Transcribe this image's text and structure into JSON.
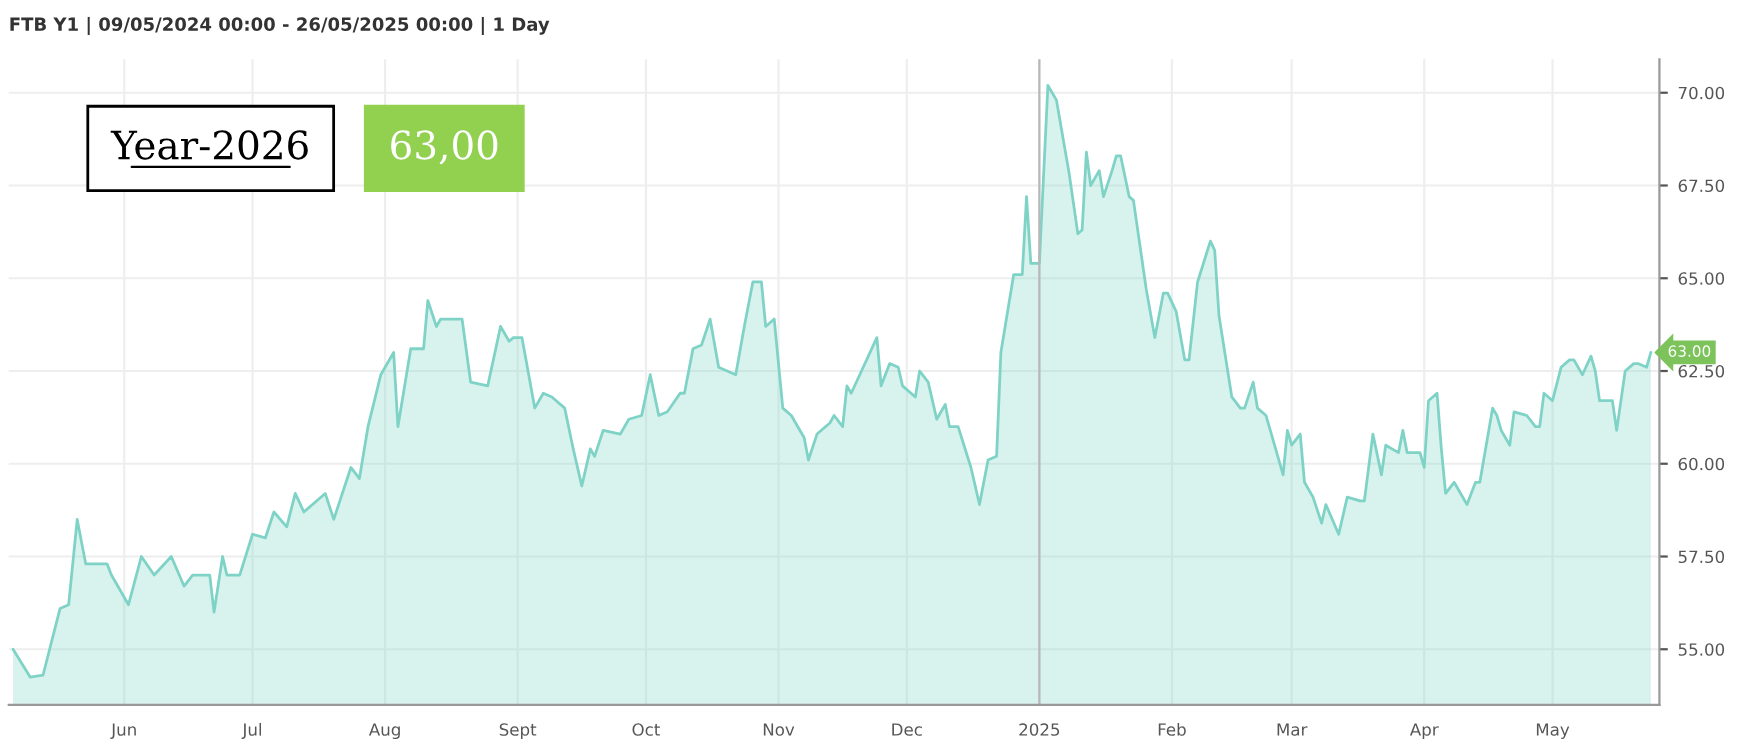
{
  "chart_data": {
    "type": "area",
    "title": "FTB Y1 | 09/05/2024 00:00 - 26/05/2025 00:00 | 1 Day",
    "x": [
      "2024-05-06",
      "2024-05-10",
      "2024-05-13",
      "2024-05-17",
      "2024-05-19",
      "2024-05-21",
      "2024-05-23",
      "2024-05-28",
      "2024-05-29",
      "2024-06-02",
      "2024-06-05",
      "2024-06-08",
      "2024-06-12",
      "2024-06-15",
      "2024-06-17",
      "2024-06-21",
      "2024-06-22",
      "2024-06-24",
      "2024-06-25",
      "2024-06-28",
      "2024-07-01",
      "2024-07-04",
      "2024-07-06",
      "2024-07-09",
      "2024-07-11",
      "2024-07-13",
      "2024-07-18",
      "2024-07-20",
      "2024-07-24",
      "2024-07-26",
      "2024-07-28",
      "2024-07-31",
      "2024-08-03",
      "2024-08-04",
      "2024-08-07",
      "2024-08-10",
      "2024-08-11",
      "2024-08-13",
      "2024-08-14",
      "2024-08-19",
      "2024-08-21",
      "2024-08-25",
      "2024-08-28",
      "2024-08-30",
      "2024-08-31",
      "2024-09-02",
      "2024-09-05",
      "2024-09-07",
      "2024-09-09",
      "2024-09-12",
      "2024-09-14",
      "2024-09-16",
      "2024-09-18",
      "2024-09-19",
      "2024-09-21",
      "2024-09-25",
      "2024-09-27",
      "2024-09-30",
      "2024-10-02",
      "2024-10-04",
      "2024-10-06",
      "2024-10-09",
      "2024-10-10",
      "2024-10-12",
      "2024-10-14",
      "2024-10-16",
      "2024-10-18",
      "2024-10-22",
      "2024-10-24",
      "2024-10-26",
      "2024-10-28",
      "2024-10-29",
      "2024-10-31",
      "2024-11-02",
      "2024-11-04",
      "2024-11-07",
      "2024-11-08",
      "2024-11-10",
      "2024-11-13",
      "2024-11-14",
      "2024-11-16",
      "2024-11-17",
      "2024-11-18",
      "2024-11-20",
      "2024-11-24",
      "2024-11-25",
      "2024-11-27",
      "2024-11-29",
      "2024-11-30",
      "2024-12-03",
      "2024-12-04",
      "2024-12-06",
      "2024-12-08",
      "2024-12-10",
      "2024-12-11",
      "2024-12-13",
      "2024-12-16",
      "2024-12-18",
      "2024-12-20",
      "2024-12-22",
      "2024-12-23",
      "2024-12-24",
      "2024-12-26",
      "2024-12-28",
      "2024-12-29",
      "2024-12-30",
      "2025-01-01",
      "2025-01-03",
      "2025-01-05",
      "2025-01-08",
      "2025-01-10",
      "2025-01-11",
      "2025-01-12",
      "2025-01-13",
      "2025-01-15",
      "2025-01-16",
      "2025-01-18",
      "2025-01-19",
      "2025-01-20",
      "2025-01-22",
      "2025-01-23",
      "2025-01-26",
      "2025-01-28",
      "2025-01-30",
      "2025-01-31",
      "2025-02-02",
      "2025-02-04",
      "2025-02-05",
      "2025-02-07",
      "2025-02-10",
      "2025-02-11",
      "2025-02-12",
      "2025-02-15",
      "2025-02-17",
      "2025-02-18",
      "2025-02-20",
      "2025-02-21",
      "2025-02-23",
      "2025-02-25",
      "2025-02-27",
      "2025-02-28",
      "2025-03-01",
      "2025-03-03",
      "2025-03-04",
      "2025-03-06",
      "2025-03-08",
      "2025-03-09",
      "2025-03-12",
      "2025-03-14",
      "2025-03-17",
      "2025-03-18",
      "2025-03-20",
      "2025-03-22",
      "2025-03-23",
      "2025-03-26",
      "2025-03-27",
      "2025-03-28",
      "2025-03-31",
      "2025-04-01",
      "2025-04-02",
      "2025-04-04",
      "2025-04-05",
      "2025-04-06",
      "2025-04-08",
      "2025-04-11",
      "2025-04-13",
      "2025-04-14",
      "2025-04-17",
      "2025-04-18",
      "2025-04-19",
      "2025-04-21",
      "2025-04-22",
      "2025-04-25",
      "2025-04-27",
      "2025-04-28",
      "2025-04-29",
      "2025-05-01",
      "2025-05-03",
      "2025-05-05",
      "2025-05-06",
      "2025-05-08",
      "2025-05-10",
      "2025-05-11",
      "2025-05-12",
      "2025-05-15",
      "2025-05-16",
      "2025-05-18",
      "2025-05-20",
      "2025-05-21",
      "2025-05-23",
      "2025-05-24"
    ],
    "series": [
      {
        "color": "#7fd3c6",
        "values": [
          55.0,
          54.25,
          54.3,
          56.1,
          56.2,
          58.5,
          57.3,
          57.3,
          57.0,
          56.2,
          57.5,
          57.0,
          57.5,
          56.7,
          57.0,
          57.0,
          56.0,
          57.5,
          57.0,
          57.0,
          58.1,
          58.0,
          58.7,
          58.3,
          59.2,
          58.7,
          59.2,
          58.5,
          59.9,
          59.6,
          61.0,
          62.4,
          63.0,
          61.0,
          63.1,
          63.1,
          64.4,
          63.7,
          63.9,
          63.9,
          62.2,
          62.1,
          63.7,
          63.3,
          63.4,
          63.4,
          61.5,
          61.9,
          61.8,
          61.5,
          60.4,
          59.4,
          60.4,
          60.2,
          60.9,
          60.8,
          61.2,
          61.3,
          62.4,
          61.3,
          61.4,
          61.9,
          61.9,
          63.1,
          63.2,
          63.9,
          62.6,
          62.4,
          63.7,
          64.9,
          64.9,
          63.7,
          63.9,
          61.5,
          61.3,
          60.7,
          60.1,
          60.8,
          61.1,
          61.3,
          61.0,
          62.1,
          61.9,
          62.4,
          63.4,
          62.1,
          62.7,
          62.6,
          62.1,
          61.8,
          62.5,
          62.2,
          61.2,
          61.6,
          61.0,
          61.0,
          59.9,
          58.9,
          60.1,
          60.2,
          63.0,
          63.7,
          65.1,
          65.1,
          67.2,
          65.4,
          65.4,
          70.2,
          69.8,
          67.8,
          66.2,
          66.3,
          68.4,
          67.5,
          67.9,
          67.2,
          67.9,
          68.3,
          68.3,
          67.2,
          67.1,
          64.7,
          63.4,
          64.6,
          64.6,
          64.1,
          62.8,
          62.8,
          64.9,
          66.0,
          65.75,
          64.0,
          61.8,
          61.5,
          61.5,
          62.2,
          61.5,
          61.3,
          60.5,
          59.7,
          60.9,
          60.5,
          60.8,
          59.5,
          59.1,
          58.4,
          58.9,
          58.1,
          59.1,
          59.0,
          59.0,
          60.8,
          59.7,
          60.5,
          60.3,
          60.9,
          60.3,
          60.3,
          59.9,
          61.7,
          61.9,
          60.4,
          59.2,
          59.5,
          58.9,
          59.5,
          59.5,
          61.5,
          61.3,
          60.9,
          60.5,
          61.4,
          61.3,
          61.0,
          61.0,
          61.9,
          61.7,
          62.6,
          62.8,
          62.8,
          62.4,
          62.9,
          62.5,
          61.7,
          61.7,
          60.9,
          62.5,
          62.7,
          62.7,
          62.6,
          63.0
        ]
      }
    ],
    "xlim": [
      "2024-05-05",
      "2025-05-26"
    ],
    "xticks": [
      {
        "value": "2024-06-01",
        "label": "Jun"
      },
      {
        "value": "2024-07-01",
        "label": "Jul"
      },
      {
        "value": "2024-08-01",
        "label": "Aug"
      },
      {
        "value": "2024-09-01",
        "label": "Sept"
      },
      {
        "value": "2024-10-01",
        "label": "Oct"
      },
      {
        "value": "2024-11-01",
        "label": "Nov"
      },
      {
        "value": "2024-12-01",
        "label": "Dec"
      },
      {
        "value": "2025-01-01",
        "label": "2025"
      },
      {
        "value": "2025-02-01",
        "label": "Feb"
      },
      {
        "value": "2025-03-01",
        "label": "Mar"
      },
      {
        "value": "2025-04-01",
        "label": "Apr"
      },
      {
        "value": "2025-05-01",
        "label": "May"
      }
    ],
    "ylim": [
      53.5,
      70.9
    ],
    "yticks": [
      {
        "value": 55,
        "label": "55.00"
      },
      {
        "value": 57.5,
        "label": "57.50"
      },
      {
        "value": 60,
        "label": "60.00"
      },
      {
        "value": 62.5,
        "label": "62.50"
      },
      {
        "value": 65,
        "label": "65.00"
      },
      {
        "value": 67.5,
        "label": "67.50"
      },
      {
        "value": 70,
        "label": "70.00"
      }
    ],
    "ref_lines": [
      {
        "axis": "x",
        "value": "2025-01-01",
        "color": "#b8b8b8"
      }
    ],
    "annotations": [
      "Year-2026",
      "63,00",
      {
        "text": "63.00",
        "x": "2025-05-24",
        "y": 63
      }
    ],
    "grid": true
  }
}
